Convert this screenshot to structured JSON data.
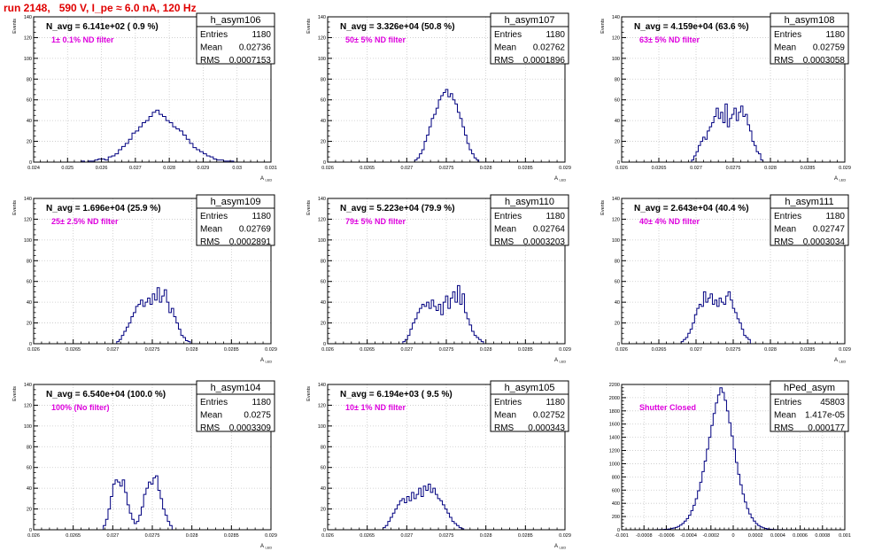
{
  "page_title": "run 2148,   590 V, I_pe ≈ 6.0 nA, 120 Hz",
  "colors": {
    "title": "#e00000",
    "histogram": "#000080",
    "annotation": "#dd00dd",
    "grid": "#c8c8c8",
    "frame": "#000000"
  },
  "stats_labels": {
    "entries": "Entries",
    "mean": "Mean",
    "rms": "RMS"
  },
  "chart_data": [
    {
      "type": "histogram",
      "name": "h_asym106",
      "header": "N_avg = 6.141e+02 ( 0.9 %)",
      "annotation": "1± 0.1% ND filter",
      "stats": {
        "entries": "1180",
        "mean": "0.02736",
        "rms": "0.0007153"
      },
      "xlabel": "A_LED",
      "ylabel": "Events",
      "xlim": [
        0.024,
        0.031
      ],
      "ylim": [
        0,
        140
      ],
      "grid": true,
      "xticks": [
        "0.024",
        "0.025",
        "0.026",
        "0.027",
        "0.028",
        "0.029",
        "0.03",
        "0.031"
      ],
      "yticks": [
        "0",
        "20",
        "40",
        "60",
        "80",
        "100",
        "120",
        "140"
      ],
      "bin_low": 0.0254,
      "bin_width": 0.0001,
      "counts": [
        1,
        0,
        1,
        1,
        2,
        3,
        3,
        2,
        5,
        6,
        8,
        12,
        15,
        18,
        22,
        28,
        30,
        34,
        38,
        40,
        44,
        48,
        50,
        46,
        44,
        40,
        38,
        34,
        32,
        30,
        26,
        22,
        18,
        14,
        12,
        10,
        8,
        6,
        5,
        3,
        2,
        2,
        1,
        1,
        1
      ]
    },
    {
      "type": "histogram",
      "name": "h_asym107",
      "header": "N_avg = 3.326e+04 (50.8 %)",
      "annotation": "50± 5% ND filter",
      "stats": {
        "entries": "1180",
        "mean": "0.02762",
        "rms": "0.0001896"
      },
      "xlabel": "A_LED",
      "ylabel": "Events",
      "xlim": [
        0.026,
        0.029
      ],
      "ylim": [
        0,
        140
      ],
      "grid": true,
      "xticks": [
        "0.026",
        "0.0265",
        "0.027",
        "0.0275",
        "0.028",
        "0.0285",
        "0.029"
      ],
      "yticks": [
        "0",
        "20",
        "40",
        "60",
        "80",
        "100",
        "120",
        "140"
      ],
      "bin_low": 0.0271,
      "bin_width": 3e-05,
      "counts": [
        2,
        4,
        8,
        12,
        20,
        26,
        34,
        42,
        46,
        52,
        60,
        64,
        67,
        70,
        63,
        66,
        60,
        56,
        48,
        42,
        34,
        26,
        18,
        12,
        8,
        4,
        2
      ]
    },
    {
      "type": "histogram",
      "name": "h_asym108",
      "header": "N_avg = 4.159e+04 (63.6 %)",
      "annotation": "63± 5% ND filter",
      "stats": {
        "entries": "1180",
        "mean": "0.02759",
        "rms": "0.0003058"
      },
      "xlabel": "A_LED",
      "ylabel": "Events",
      "xlim": [
        0.026,
        0.029
      ],
      "ylim": [
        0,
        140
      ],
      "grid": true,
      "xticks": [
        "0.026",
        "0.0265",
        "0.027",
        "0.0275",
        "0.028",
        "0.0285",
        "0.029"
      ],
      "yticks": [
        "0",
        "20",
        "40",
        "60",
        "80",
        "100",
        "120",
        "140"
      ],
      "bin_low": 0.02694,
      "bin_width": 3e-05,
      "counts": [
        2,
        6,
        10,
        16,
        20,
        24,
        22,
        30,
        34,
        38,
        44,
        52,
        42,
        48,
        38,
        56,
        34,
        42,
        46,
        52,
        40,
        48,
        54,
        44,
        46,
        36,
        30,
        20,
        16,
        10,
        8,
        2
      ]
    },
    {
      "type": "histogram",
      "name": "h_asym109",
      "header": "N_avg = 1.696e+04 (25.9 %)",
      "annotation": "25± 2.5% ND filter",
      "stats": {
        "entries": "1180",
        "mean": "0.02769",
        "rms": "0.0002891"
      },
      "xlabel": "A_LED",
      "ylabel": "Events",
      "xlim": [
        0.026,
        0.029
      ],
      "ylim": [
        0,
        140
      ],
      "grid": true,
      "xticks": [
        "0.026",
        "0.0265",
        "0.027",
        "0.0275",
        "0.028",
        "0.0285",
        "0.029"
      ],
      "yticks": [
        "0",
        "20",
        "40",
        "60",
        "80",
        "100",
        "120",
        "140"
      ],
      "bin_low": 0.02705,
      "bin_width": 3e-05,
      "counts": [
        2,
        4,
        8,
        12,
        16,
        20,
        26,
        30,
        36,
        38,
        42,
        36,
        40,
        44,
        38,
        48,
        42,
        54,
        40,
        46,
        52,
        40,
        30,
        34,
        26,
        20,
        14,
        8,
        6,
        3,
        2
      ]
    },
    {
      "type": "histogram",
      "name": "h_asym110",
      "header": "N_avg = 5.223e+04 (79.9 %)",
      "annotation": "79± 5% ND filter",
      "stats": {
        "entries": "1180",
        "mean": "0.02764",
        "rms": "0.0003203"
      },
      "xlabel": "A_LED",
      "ylabel": "Events",
      "xlim": [
        0.026,
        0.029
      ],
      "ylim": [
        0,
        140
      ],
      "grid": true,
      "xticks": [
        "0.026",
        "0.0265",
        "0.027",
        "0.0275",
        "0.028",
        "0.0285",
        "0.029"
      ],
      "yticks": [
        "0",
        "20",
        "40",
        "60",
        "80",
        "100",
        "120",
        "140"
      ],
      "bin_low": 0.02695,
      "bin_width": 3e-05,
      "counts": [
        2,
        4,
        8,
        14,
        20,
        24,
        30,
        34,
        38,
        36,
        40,
        34,
        42,
        36,
        32,
        38,
        28,
        40,
        46,
        34,
        44,
        50,
        40,
        56,
        38,
        48,
        30,
        24,
        18,
        12,
        8,
        6,
        4,
        2
      ]
    },
    {
      "type": "histogram",
      "name": "h_asym111",
      "header": "N_avg = 2.643e+04 (40.4 %)",
      "annotation": "40± 4% ND filter",
      "stats": {
        "entries": "1180",
        "mean": "0.02747",
        "rms": "0.0003034"
      },
      "xlabel": "A_LED",
      "ylabel": "Events",
      "xlim": [
        0.026,
        0.029
      ],
      "ylim": [
        0,
        140
      ],
      "grid": true,
      "xticks": [
        "0.026",
        "0.0265",
        "0.027",
        "0.0275",
        "0.028",
        "0.0285",
        "0.029"
      ],
      "yticks": [
        "0",
        "20",
        "40",
        "60",
        "80",
        "100",
        "120",
        "140"
      ],
      "bin_low": 0.0268,
      "bin_width": 3e-05,
      "counts": [
        2,
        4,
        6,
        10,
        14,
        20,
        28,
        34,
        38,
        36,
        50,
        40,
        44,
        48,
        38,
        42,
        36,
        44,
        40,
        38,
        46,
        50,
        42,
        34,
        30,
        24,
        20,
        14,
        8,
        6,
        4
      ]
    },
    {
      "type": "histogram",
      "name": "h_asym104",
      "header": "N_avg = 6.540e+04 (100.0 %)",
      "annotation": "100% (No filter)",
      "stats": {
        "entries": "1180",
        "mean": "0.0275",
        "rms": "0.0003309"
      },
      "xlabel": "A_LED",
      "ylabel": "Events",
      "xlim": [
        0.026,
        0.029
      ],
      "ylim": [
        0,
        140
      ],
      "grid": true,
      "xticks": [
        "0.026",
        "0.0265",
        "0.027",
        "0.0275",
        "0.028",
        "0.0285",
        "0.029"
      ],
      "yticks": [
        "0",
        "20",
        "40",
        "60",
        "80",
        "100",
        "120",
        "140"
      ],
      "bin_low": 0.02688,
      "bin_width": 3e-05,
      "counts": [
        4,
        10,
        20,
        32,
        44,
        48,
        46,
        42,
        48,
        36,
        24,
        16,
        10,
        6,
        8,
        14,
        22,
        34,
        40,
        46,
        44,
        50,
        52,
        38,
        30,
        20,
        14,
        8,
        4
      ]
    },
    {
      "type": "histogram",
      "name": "h_asym105",
      "header": "N_avg = 6.194e+03 ( 9.5 %)",
      "annotation": "10± 1% ND filter",
      "stats": {
        "entries": "1180",
        "mean": "0.02752",
        "rms": "0.000343"
      },
      "xlabel": "A_LED",
      "ylabel": "Events",
      "xlim": [
        0.026,
        0.029
      ],
      "ylim": [
        0,
        140
      ],
      "grid": true,
      "xticks": [
        "0.026",
        "0.0265",
        "0.027",
        "0.0275",
        "0.028",
        "0.0285",
        "0.029"
      ],
      "yticks": [
        "0",
        "20",
        "40",
        "60",
        "80",
        "100",
        "120",
        "140"
      ],
      "bin_low": 0.0267,
      "bin_width": 3e-05,
      "counts": [
        2,
        4,
        8,
        12,
        16,
        20,
        24,
        28,
        30,
        26,
        32,
        28,
        36,
        30,
        34,
        40,
        32,
        42,
        38,
        44,
        36,
        40,
        34,
        30,
        28,
        24,
        20,
        16,
        12,
        8,
        6,
        4,
        2,
        1
      ]
    },
    {
      "type": "histogram",
      "name": "hPed_asym",
      "header": "",
      "annotation": "Shutter Closed",
      "stats": {
        "entries": "45803",
        "mean": "1.417e-05",
        "rms": "0.000177"
      },
      "xlabel": "",
      "ylabel": "",
      "xlim": [
        -0.001,
        0.001
      ],
      "ylim": [
        0,
        2200
      ],
      "grid": true,
      "xticks": [
        "-0.001",
        "-0.0008",
        "-0.0006",
        "-0.0004",
        "-0.0002",
        "0",
        "0.0002",
        "0.0004",
        "0.0006",
        "0.0008",
        "0.001"
      ],
      "yticks": [
        "0",
        "200",
        "400",
        "600",
        "800",
        "1000",
        "1200",
        "1400",
        "1600",
        "1800",
        "2000",
        "2200"
      ],
      "bin_low": -0.0007,
      "bin_width": 2e-05,
      "counts": [
        1,
        2,
        3,
        4,
        6,
        8,
        12,
        18,
        26,
        36,
        50,
        70,
        96,
        130,
        170,
        220,
        290,
        370,
        470,
        590,
        720,
        880,
        1040,
        1220,
        1400,
        1580,
        1760,
        1920,
        2040,
        2150,
        2080,
        1960,
        1800,
        1620,
        1420,
        1220,
        1020,
        840,
        680,
        540,
        420,
        320,
        240,
        180,
        130,
        92,
        64,
        44,
        30,
        20,
        13,
        8,
        5,
        3,
        2,
        1,
        1,
        1
      ]
    }
  ]
}
